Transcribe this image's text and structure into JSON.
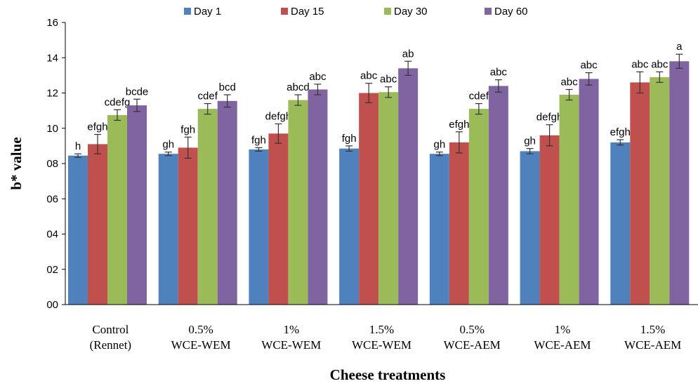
{
  "chart_data": {
    "type": "bar",
    "xlabel": "Cheese treatments",
    "ylabel": "b* value",
    "ylim": [
      0,
      16
    ],
    "ytick_values": [
      0,
      2,
      4,
      6,
      8,
      10,
      12,
      14,
      16
    ],
    "ytick_labels": [
      "00",
      "02",
      "04",
      "06",
      "08",
      "10",
      "12",
      "14",
      "16"
    ],
    "grid": false,
    "legend_position": "top",
    "categories": [
      [
        "Control",
        "(Rennet)"
      ],
      [
        "0.5%",
        "WCE-WEM"
      ],
      [
        "1%",
        "WCE-WEM"
      ],
      [
        "1.5%",
        "WCE-WEM"
      ],
      [
        "0.5%",
        "WCE-AEM"
      ],
      [
        "1%",
        "WCE-AEM"
      ],
      [
        "1.5%",
        "WCE-AEM"
      ]
    ],
    "series": [
      {
        "name": "Day 1",
        "color": "#4F81BD",
        "values": [
          8.45,
          8.55,
          8.8,
          8.85,
          8.55,
          8.7,
          9.2
        ],
        "errors": [
          0.1,
          0.1,
          0.1,
          0.15,
          0.1,
          0.15,
          0.15
        ],
        "letters": [
          "h",
          "gh",
          "fgh",
          "fgh",
          "gh",
          "gh",
          "efgh"
        ]
      },
      {
        "name": "Day 15",
        "color": "#C0504D",
        "values": [
          9.1,
          8.9,
          9.7,
          12.0,
          9.2,
          9.6,
          12.6
        ],
        "errors": [
          0.55,
          0.6,
          0.55,
          0.55,
          0.6,
          0.6,
          0.6
        ],
        "letters": [
          "efgh",
          "fgh",
          "defgh",
          "abc",
          "efgh",
          "defgh",
          "abc"
        ]
      },
      {
        "name": "Day 30",
        "color": "#9BBB59",
        "values": [
          10.75,
          11.1,
          11.6,
          12.05,
          11.1,
          11.9,
          12.9
        ],
        "errors": [
          0.3,
          0.3,
          0.3,
          0.3,
          0.3,
          0.3,
          0.3
        ],
        "letters": [
          "cdefg",
          "cdef",
          "abcd",
          "abc",
          "cdef",
          "abc",
          "abc"
        ]
      },
      {
        "name": "Day 60",
        "color": "#8064A2",
        "values": [
          11.3,
          11.55,
          12.2,
          13.4,
          12.4,
          12.8,
          13.8
        ],
        "errors": [
          0.35,
          0.35,
          0.3,
          0.4,
          0.35,
          0.35,
          0.4
        ],
        "letters": [
          "bcde",
          "bcd",
          "abc",
          "ab",
          "abc",
          "abc",
          "a"
        ]
      }
    ]
  }
}
